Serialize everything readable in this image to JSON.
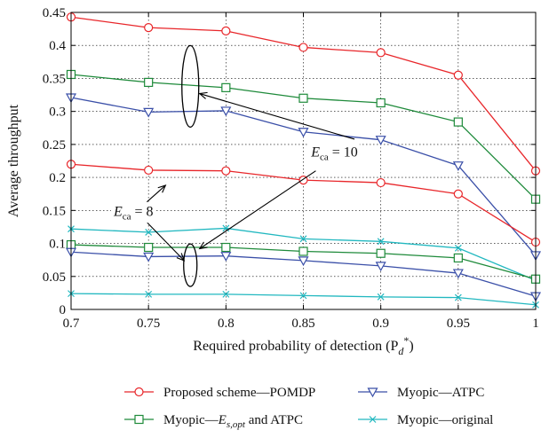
{
  "chart_data": {
    "type": "line",
    "title": "",
    "xlabel": "Required probability of detection (P",
    "xlabel_var": "d",
    "xlabel_sup": "*",
    "xlabel_close": ")",
    "ylabel": "Average throughput",
    "xlim": [
      0.7,
      1.0
    ],
    "ylim": [
      0,
      0.45
    ],
    "x_ticks": [
      "0.7",
      "0.75",
      "0.8",
      "0.85",
      "0.9",
      "0.95",
      "1"
    ],
    "y_ticks": [
      "0",
      "0.05",
      "0.1",
      "0.15",
      "0.2",
      "0.25",
      "0.3",
      "0.35",
      "0.4",
      "0.45"
    ],
    "grid": true,
    "x": [
      0.7,
      0.75,
      0.8,
      0.85,
      0.9,
      0.95,
      1.0
    ],
    "series": [
      {
        "name": "Proposed scheme—POMDP",
        "color": "#e8262a",
        "marker": "circle",
        "group": "E_ca = 10",
        "values": [
          0.443,
          0.427,
          0.422,
          0.397,
          0.389,
          0.355,
          0.21
        ]
      },
      {
        "name": "Myopic—E_s,opt and ATPC",
        "color": "#1e8a3a",
        "marker": "square",
        "group": "E_ca = 10",
        "values": [
          0.356,
          0.344,
          0.336,
          0.32,
          0.313,
          0.284,
          0.167
        ]
      },
      {
        "name": "Myopic—ATPC",
        "color": "#3a4fa8",
        "marker": "triangle-down",
        "group": "E_ca = 10",
        "values": [
          0.321,
          0.299,
          0.301,
          0.269,
          0.257,
          0.218,
          0.082
        ]
      },
      {
        "name": "Proposed scheme—POMDP",
        "color": "#e8262a",
        "marker": "circle",
        "group": "E_ca = 8",
        "values": [
          0.22,
          0.211,
          0.21,
          0.196,
          0.192,
          0.175,
          0.102
        ]
      },
      {
        "name": "Myopic—original",
        "color": "#22b8c0",
        "marker": "x",
        "group": "E_ca = 10",
        "values": [
          0.122,
          0.117,
          0.123,
          0.107,
          0.103,
          0.093,
          0.044
        ]
      },
      {
        "name": "Myopic—E_s,opt and ATPC",
        "color": "#1e8a3a",
        "marker": "square",
        "group": "E_ca = 8",
        "values": [
          0.098,
          0.094,
          0.094,
          0.088,
          0.085,
          0.078,
          0.046
        ]
      },
      {
        "name": "Myopic—ATPC",
        "color": "#3a4fa8",
        "marker": "triangle-down",
        "group": "E_ca = 8",
        "values": [
          0.087,
          0.08,
          0.081,
          0.074,
          0.066,
          0.055,
          0.02
        ]
      },
      {
        "name": "Myopic—original",
        "color": "#22b8c0",
        "marker": "x",
        "group": "E_ca = 8",
        "values": [
          0.024,
          0.023,
          0.023,
          0.021,
          0.019,
          0.018,
          0.007
        ]
      }
    ],
    "annotations": [
      {
        "var": "E",
        "sub": "ca",
        "rest": " = 10"
      },
      {
        "var": "E",
        "sub": "ca",
        "rest": " = 8"
      }
    ],
    "legend": {
      "placement": "bottom",
      "entries": [
        {
          "label": "Proposed scheme—POMDP",
          "color": "#e8262a",
          "marker": "circle"
        },
        {
          "label": "Myopic—ATPC",
          "color": "#3a4fa8",
          "marker": "triangle-down"
        },
        {
          "label_pre": "Myopic—",
          "label_var": "E",
          "label_sub": "s,opt",
          "label_post": " and ATPC",
          "color": "#1e8a3a",
          "marker": "square"
        },
        {
          "label": "Myopic—original",
          "color": "#22b8c0",
          "marker": "x"
        }
      ]
    }
  }
}
